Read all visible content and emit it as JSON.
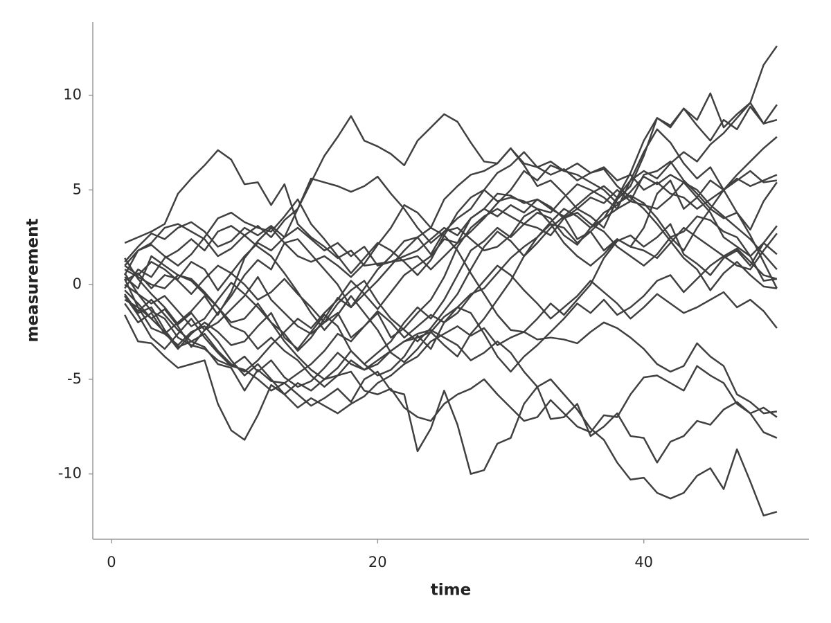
{
  "chart_data": {
    "type": "line",
    "xlabel": "time",
    "ylabel": "measurement",
    "x": [
      1,
      2,
      3,
      4,
      5,
      6,
      7,
      8,
      9,
      10,
      11,
      12,
      13,
      14,
      15,
      16,
      17,
      18,
      19,
      20,
      21,
      22,
      23,
      24,
      25,
      26,
      27,
      28,
      29,
      30,
      31,
      32,
      33,
      34,
      35,
      36,
      37,
      38,
      39,
      40,
      41,
      42,
      43,
      44,
      45,
      46,
      47,
      48,
      49,
      50
    ],
    "xlim": [
      -1.4,
      52.4
    ],
    "xticks": [
      0,
      20,
      40
    ],
    "ylim": [
      -13.45,
      13.86
    ],
    "yticks": [
      -10,
      -5,
      0,
      5,
      10
    ],
    "grid": false,
    "series": [
      {
        "color": "#404040",
        "values": [
          1.0,
          0.5,
          1.2,
          0.8,
          0.2,
          -0.5,
          0.3,
          1.0,
          0.6,
          1.5,
          2.2,
          1.8,
          2.5,
          3.0,
          2.4,
          1.8,
          2.2,
          1.5,
          2.0,
          1.0,
          1.2,
          1.5,
          1.8,
          2.4,
          3.0,
          2.6,
          3.5,
          4.0,
          3.6,
          4.2,
          3.8,
          4.5,
          4.0,
          3.6,
          4.2,
          4.8,
          5.2,
          4.6,
          5.5,
          6.0,
          5.6,
          6.4,
          7.0,
          6.5,
          7.4,
          8.0,
          8.8,
          9.6,
          11.6,
          12.6
        ]
      },
      {
        "color": "#404040",
        "values": [
          2.2,
          2.5,
          2.8,
          3.2,
          4.8,
          5.6,
          6.3,
          7.1,
          6.6,
          5.3,
          5.4,
          4.2,
          5.3,
          3.2,
          2.5,
          2.0,
          1.4,
          1.8,
          1.0,
          1.1,
          1.2,
          1.3,
          1.5,
          0.8,
          1.5,
          2.2,
          2.8,
          3.5,
          4.3,
          5.0,
          6.0,
          5.5,
          6.3,
          6.0,
          6.4,
          5.9,
          6.2,
          5.5,
          5.8,
          5.0,
          5.4,
          4.8,
          4.6,
          4.0,
          4.5,
          5.0,
          5.5,
          6.0,
          5.4,
          5.5
        ]
      },
      {
        "color": "#404040",
        "values": [
          0.5,
          1.8,
          2.2,
          3.0,
          3.2,
          2.8,
          2.4,
          1.5,
          1.9,
          2.6,
          3.1,
          2.5,
          3.4,
          4.0,
          5.4,
          6.8,
          7.8,
          8.9,
          7.6,
          7.3,
          6.9,
          6.3,
          7.6,
          8.3,
          9.0,
          8.6,
          7.5,
          6.5,
          6.4,
          7.2,
          6.3,
          5.2,
          5.5,
          4.8,
          4.0,
          3.6,
          3.0,
          4.5,
          5.2,
          6.8,
          8.8,
          8.3,
          9.3,
          8.4,
          7.6,
          8.7,
          8.2,
          9.4,
          8.5,
          9.5
        ]
      },
      {
        "color": "#404040",
        "values": [
          -1.6,
          -3.0,
          -3.1,
          -3.8,
          -4.4,
          -4.2,
          -4.0,
          -6.3,
          -7.7,
          -8.2,
          -6.9,
          -5.3,
          -5.8,
          -5.2,
          -5.6,
          -5.0,
          -4.8,
          -4.6,
          -5.6,
          -5.8,
          -5.5,
          -6.5,
          -7.0,
          -7.2,
          -6.3,
          -5.8,
          -5.5,
          -5.0,
          -5.8,
          -6.5,
          -7.2,
          -7.0,
          -6.1,
          -6.8,
          -7.5,
          -7.8,
          -6.9,
          -7.0,
          -5.8,
          -4.9,
          -4.8,
          -5.2,
          -5.6,
          -4.3,
          -4.8,
          -5.2,
          -6.3,
          -6.8,
          -6.5,
          -7.0
        ]
      },
      {
        "color": "#404040",
        "values": [
          -0.5,
          -1.5,
          -1.2,
          -2.4,
          -3.3,
          -3.0,
          -3.3,
          -4.2,
          -4.4,
          -5.6,
          -4.5,
          -5.1,
          -5.2,
          -5.8,
          -6.4,
          -6.0,
          -5.5,
          -6.2,
          -5.0,
          -4.6,
          -5.6,
          -5.8,
          -8.8,
          -7.6,
          -5.6,
          -7.4,
          -10.0,
          -9.8,
          -8.4,
          -8.1,
          -6.3,
          -5.4,
          -7.1,
          -7.0,
          -6.3,
          -8.0,
          -7.5,
          -6.8,
          -8.0,
          -8.1,
          -9.4,
          -8.3,
          -8.0,
          -7.2,
          -7.4,
          -6.6,
          -6.2,
          -6.8,
          -7.8,
          -8.1
        ]
      },
      {
        "color": "#404040",
        "values": [
          0.6,
          -0.5,
          -1.4,
          -1.8,
          -2.8,
          -3.2,
          -3.4,
          -4.0,
          -4.3,
          -3.8,
          -4.6,
          -4.0,
          -4.9,
          -5.4,
          -5.1,
          -4.4,
          -3.6,
          -4.2,
          -4.5,
          -4.0,
          -3.5,
          -3.0,
          -2.6,
          -2.4,
          -2.8,
          -3.2,
          -4.0,
          -3.6,
          -3.0,
          -3.6,
          -4.6,
          -5.4,
          -5.0,
          -5.8,
          -6.6,
          -7.6,
          -8.2,
          -9.4,
          -10.3,
          -10.2,
          -11.0,
          -11.3,
          -11.0,
          -10.1,
          -9.7,
          -10.8,
          -8.7,
          -10.4,
          -12.2,
          -12.0
        ]
      },
      {
        "color": "#404040",
        "values": [
          -0.8,
          -1.2,
          -2.3,
          -2.6,
          -2.0,
          -1.4,
          -0.6,
          -1.6,
          -0.4,
          1.4,
          2.3,
          3.0,
          2.2,
          1.5,
          1.2,
          1.5,
          1.0,
          0.4,
          1.1,
          2.1,
          3.0,
          4.2,
          3.8,
          3.0,
          4.5,
          5.2,
          5.8,
          6.0,
          6.4,
          7.2,
          6.4,
          6.2,
          6.5,
          6.0,
          5.8,
          5.4,
          5.0,
          4.3,
          4.7,
          4.3,
          3.5,
          2.5,
          1.8,
          3.0,
          4.0,
          5.0,
          5.8,
          6.5,
          7.2,
          7.8
        ]
      },
      {
        "color": "#404040",
        "values": [
          1.4,
          0.3,
          -0.5,
          -1.2,
          -2.1,
          -1.5,
          -2.4,
          -2.0,
          -1.3,
          -0.6,
          0.4,
          -0.8,
          -1.5,
          -2.2,
          -2.6,
          -2.0,
          -1.0,
          -0.3,
          0.2,
          -0.9,
          -1.8,
          -2.4,
          -3.0,
          -2.3,
          -1.4,
          -0.5,
          0.8,
          2.0,
          2.8,
          2.3,
          1.5,
          2.2,
          3.0,
          3.6,
          2.4,
          2.8,
          3.5,
          4.6,
          5.9,
          7.6,
          8.8,
          8.4,
          9.3,
          8.7,
          10.1,
          8.3,
          9.0,
          9.6,
          8.5,
          8.7
        ]
      },
      {
        "color": "#404040",
        "values": [
          -0.3,
          -1.0,
          -1.8,
          -2.5,
          -3.4,
          -2.6,
          -2.0,
          -2.5,
          -3.2,
          -3.0,
          -2.2,
          -1.5,
          -2.8,
          -3.4,
          -2.5,
          -1.6,
          -2.2,
          -3.5,
          -4.2,
          -3.6,
          -3.0,
          -2.0,
          -1.2,
          -1.8,
          -0.8,
          0.5,
          1.8,
          2.3,
          3.0,
          2.5,
          3.2,
          3.8,
          3.5,
          2.6,
          2.1,
          3.0,
          3.8,
          4.2,
          4.9,
          5.7,
          5.3,
          5.8,
          5.4,
          4.6,
          5.5,
          5.0,
          5.6,
          5.2,
          5.5,
          5.8
        ]
      },
      {
        "color": "#404040",
        "values": [
          0.2,
          0.6,
          -0.2,
          0.5,
          0.3,
          1.2,
          0.8,
          -0.3,
          0.6,
          0.0,
          -0.8,
          -0.4,
          0.3,
          -0.5,
          -1.2,
          -2.0,
          -1.5,
          -2.8,
          -2.2,
          -1.5,
          -2.8,
          -2.3,
          -1.5,
          -0.8,
          0.4,
          2.0,
          3.0,
          3.6,
          4.0,
          3.6,
          3.2,
          3.0,
          2.6,
          3.5,
          4.0,
          4.6,
          4.3,
          5.0,
          4.4,
          5.8,
          6.0,
          6.5,
          5.5,
          4.8,
          4.0,
          3.5,
          3.8,
          2.9,
          4.4,
          5.4
        ]
      },
      {
        "color": "#404040",
        "values": [
          0.4,
          -0.2,
          1.5,
          1.0,
          0.5,
          0.2,
          -0.5,
          -1.2,
          -2.0,
          -1.8,
          -1.0,
          -2.0,
          -2.6,
          -3.5,
          -2.8,
          -1.8,
          -0.7,
          -1.2,
          -0.5,
          0.2,
          1.0,
          1.8,
          2.5,
          3.0,
          2.6,
          1.8,
          0.6,
          -0.5,
          -1.6,
          -2.4,
          -2.5,
          -1.8,
          -1.0,
          -1.6,
          -0.8,
          0.0,
          1.4,
          2.3,
          2.6,
          2.0,
          2.5,
          3.2,
          1.6,
          1.1,
          0.5,
          1.4,
          1.8,
          1.0,
          2.2,
          3.1
        ]
      },
      {
        "color": "#404040",
        "values": [
          0.8,
          0.4,
          0.0,
          -0.2,
          0.5,
          0.3,
          -0.4,
          -1.2,
          -2.2,
          -2.5,
          -3.4,
          -2.8,
          -3.5,
          -4.0,
          -4.8,
          -5.4,
          -4.8,
          -4.0,
          -4.5,
          -4.2,
          -3.5,
          -3.0,
          -2.8,
          -2.5,
          -3.2,
          -3.8,
          -2.6,
          -1.8,
          -0.8,
          0.2,
          1.5,
          2.5,
          3.2,
          3.0,
          2.2,
          2.8,
          1.8,
          2.4,
          2.0,
          1.8,
          1.4,
          2.2,
          3.0,
          2.5,
          2.0,
          1.5,
          1.0,
          0.8,
          1.8,
          2.7
        ]
      },
      {
        "color": "#404040",
        "values": [
          -0.2,
          0.8,
          0.4,
          1.4,
          1.8,
          2.4,
          1.8,
          2.8,
          3.1,
          2.6,
          2.0,
          1.5,
          0.6,
          -0.4,
          -1.5,
          -2.4,
          -1.6,
          -0.6,
          -1.5,
          -2.4,
          -3.6,
          -4.1,
          -3.4,
          -2.5,
          -1.7,
          -1.2,
          -0.5,
          -0.2,
          0.6,
          1.4,
          2.0,
          2.5,
          3.3,
          4.0,
          3.6,
          3.0,
          3.5,
          4.0,
          4.4,
          4.2,
          4.0,
          4.6,
          5.4,
          5.0,
          4.2,
          3.6,
          3.0,
          2.4,
          1.6,
          0.8
        ]
      },
      {
        "color": "#404040",
        "values": [
          -0.6,
          -1.4,
          -0.8,
          -1.6,
          -2.4,
          -3.0,
          -2.6,
          -3.5,
          -4.2,
          -4.6,
          -4.0,
          -3.2,
          -2.5,
          -1.8,
          -2.3,
          -1.5,
          -0.8,
          0.2,
          -0.5,
          -1.3,
          -0.4,
          0.5,
          1.0,
          1.5,
          2.4,
          2.2,
          3.5,
          4.0,
          4.8,
          4.7,
          4.3,
          4.5,
          4.1,
          3.5,
          3.8,
          3.2,
          2.8,
          2.0,
          1.5,
          1.0,
          1.6,
          2.5,
          2.8,
          3.6,
          3.4,
          2.8,
          2.5,
          1.5,
          0.2,
          0.3
        ]
      },
      {
        "color": "#404040",
        "values": [
          1.2,
          2.0,
          2.7,
          2.4,
          3.0,
          3.3,
          2.8,
          2.0,
          2.3,
          3.0,
          2.6,
          3.1,
          2.5,
          4.0,
          5.6,
          5.4,
          5.2,
          4.9,
          5.2,
          5.7,
          4.8,
          4.0,
          3.0,
          2.2,
          2.8,
          3.5,
          4.0,
          5.0,
          5.9,
          6.3,
          7.0,
          6.2,
          5.8,
          6.1,
          5.5,
          5.9,
          6.1,
          5.2,
          4.6,
          4.0,
          3.2,
          2.3,
          1.4,
          0.8,
          -0.3,
          0.6,
          1.2,
          0.5,
          -0.1,
          -0.2
        ]
      },
      {
        "color": "#404040",
        "values": [
          0.0,
          -0.5,
          -1.0,
          -0.6,
          -1.4,
          -2.2,
          -1.8,
          -0.8,
          0.1,
          -0.5,
          -1.2,
          -2.0,
          -3.0,
          -3.8,
          -4.5,
          -5.0,
          -4.4,
          -3.5,
          -4.2,
          -4.8,
          -4.5,
          -3.8,
          -2.7,
          -3.4,
          -2.0,
          -1.5,
          -0.6,
          0.2,
          1.0,
          0.5,
          -0.3,
          -1.0,
          -1.8,
          -1.2,
          -0.6,
          0.2,
          -0.4,
          -1.0,
          -1.8,
          -1.2,
          -0.5,
          -1.0,
          -1.5,
          -1.2,
          -0.8,
          -0.4,
          -1.2,
          -0.8,
          -1.4,
          -2.3
        ]
      },
      {
        "color": "#404040",
        "values": [
          -1.0,
          -2.0,
          -1.5,
          -2.6,
          -3.2,
          -2.5,
          -2.2,
          -3.0,
          -4.0,
          -4.8,
          -4.2,
          -5.0,
          -5.8,
          -6.5,
          -6.0,
          -6.4,
          -6.8,
          -6.3,
          -5.9,
          -5.2,
          -4.8,
          -4.2,
          -3.8,
          -3.0,
          -2.6,
          -2.2,
          -2.7,
          -2.3,
          -3.2,
          -2.8,
          -2.5,
          -2.9,
          -2.8,
          -2.9,
          -3.1,
          -2.5,
          -2.0,
          -2.3,
          -2.8,
          -3.4,
          -4.2,
          -4.6,
          -4.3,
          -3.1,
          -3.8,
          -4.3,
          -5.8,
          -6.2,
          -6.8,
          -6.7
        ]
      },
      {
        "color": "#404040",
        "values": [
          1.0,
          1.8,
          2.1,
          1.5,
          1.0,
          1.6,
          2.5,
          3.5,
          3.8,
          3.3,
          3.0,
          2.8,
          3.6,
          4.5,
          3.2,
          2.4,
          1.5,
          0.6,
          1.4,
          2.2,
          1.8,
          1.2,
          0.5,
          1.3,
          2.6,
          3.8,
          4.6,
          5.0,
          4.4,
          4.6,
          4.4,
          4.0,
          3.8,
          4.6,
          5.3,
          5.0,
          4.6,
          4.0,
          5.5,
          7.0,
          8.2,
          7.5,
          6.4,
          5.6,
          6.2,
          5.0,
          3.8,
          2.6,
          1.2,
          -0.2
        ]
      },
      {
        "color": "#404040",
        "values": [
          -0.6,
          -1.6,
          -2.8,
          -3.4,
          -2.6,
          -1.8,
          -2.8,
          -3.6,
          -4.3,
          -4.5,
          -5.0,
          -5.6,
          -5.2,
          -4.7,
          -4.2,
          -3.5,
          -2.6,
          -3.0,
          -2.2,
          -1.4,
          -2.0,
          -2.8,
          -2.2,
          -1.6,
          -2.0,
          -1.2,
          -1.5,
          -2.6,
          -3.8,
          -4.6,
          -3.8,
          -3.2,
          -2.5,
          -1.8,
          -1.0,
          -1.5,
          -0.8,
          -1.6,
          -1.2,
          -0.6,
          0.2,
          0.5,
          -0.4,
          0.3,
          1.0,
          1.5,
          1.9,
          1.2,
          0.5,
          0.3
        ]
      },
      {
        "color": "#404040",
        "values": [
          0.3,
          -1.2,
          -1.8,
          -1.3,
          -2.2,
          -3.3,
          -2.4,
          -1.5,
          -0.6,
          0.5,
          1.3,
          0.8,
          2.2,
          2.4,
          1.6,
          0.8,
          0.0,
          -1.2,
          -0.2,
          0.8,
          1.5,
          2.3,
          2.5,
          1.6,
          2.8,
          3.0,
          2.4,
          1.8,
          2.0,
          2.6,
          3.6,
          4.0,
          3.2,
          2.2,
          1.5,
          1.0,
          1.6,
          2.4,
          2.0,
          3.0,
          4.8,
          5.5,
          4.0,
          4.6,
          3.8,
          2.5,
          2.0,
          1.5,
          2.2,
          1.6
        ]
      }
    ]
  }
}
